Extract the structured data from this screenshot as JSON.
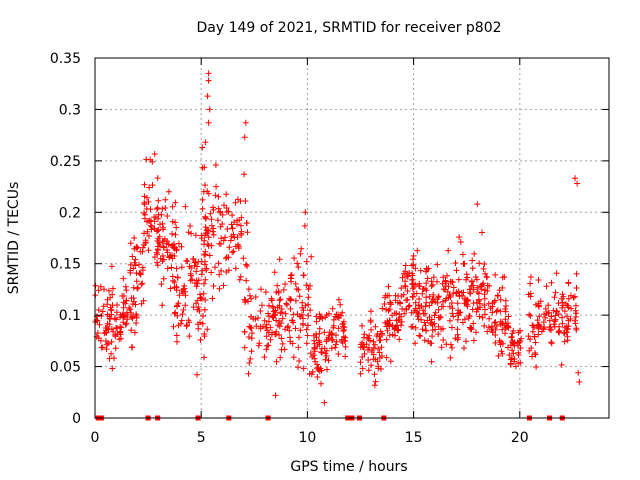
{
  "chart_data": {
    "type": "scatter",
    "title": "Day 149 of 2021, SRMTID for receiver p802",
    "xlabel": "GPS time / hours",
    "ylabel": "SRMTID / TECUs",
    "xlim": [
      0,
      24.2
    ],
    "ylim": [
      0,
      0.35
    ],
    "xticks": [
      0,
      5,
      10,
      15,
      20
    ],
    "yticks": [
      0,
      0.05,
      0.1,
      0.15,
      0.2,
      0.25,
      0.3,
      0.35
    ],
    "ytick_labels": [
      "0",
      "0.05",
      "0.1",
      "0.15",
      "0.2",
      "0.25",
      "0.3",
      "0.35"
    ],
    "grid": true,
    "marker": "+",
    "color": "#ff0000",
    "gap_markers_x": [
      0.15,
      0.3,
      2.5,
      2.95,
      4.85,
      6.3,
      8.15,
      11.9,
      12.1,
      12.45,
      13.6,
      20.45,
      21.4,
      22.0
    ],
    "clusters": [
      {
        "x0": 0.0,
        "x1": 0.55,
        "y": 0.095,
        "spread": 0.03,
        "n": 25
      },
      {
        "x0": 0.5,
        "x1": 1.3,
        "y": 0.09,
        "spread": 0.035,
        "n": 55
      },
      {
        "x0": 1.3,
        "x1": 2.0,
        "y": 0.105,
        "spread": 0.03,
        "n": 40
      },
      {
        "x0": 1.6,
        "x1": 2.3,
        "y": 0.15,
        "spread": 0.03,
        "n": 30
      },
      {
        "x0": 2.3,
        "x1": 3.0,
        "y": 0.19,
        "spread": 0.04,
        "n": 45
      },
      {
        "x0": 2.9,
        "x1": 3.8,
        "y": 0.17,
        "spread": 0.04,
        "n": 55
      },
      {
        "x0": 3.6,
        "x1": 4.6,
        "y": 0.14,
        "spread": 0.045,
        "n": 60
      },
      {
        "x0": 4.6,
        "x1": 5.3,
        "y": 0.13,
        "spread": 0.05,
        "n": 45
      },
      {
        "x0": 5.0,
        "x1": 6.0,
        "y": 0.18,
        "spread": 0.055,
        "n": 60
      },
      {
        "x0": 6.0,
        "x1": 7.2,
        "y": 0.17,
        "spread": 0.045,
        "n": 55
      },
      {
        "x0": 7.0,
        "x1": 8.2,
        "y": 0.09,
        "spread": 0.03,
        "n": 50
      },
      {
        "x0": 8.2,
        "x1": 9.2,
        "y": 0.095,
        "spread": 0.035,
        "n": 60
      },
      {
        "x0": 9.2,
        "x1": 10.2,
        "y": 0.11,
        "spread": 0.045,
        "n": 60
      },
      {
        "x0": 10.2,
        "x1": 11.0,
        "y": 0.07,
        "spread": 0.03,
        "n": 55
      },
      {
        "x0": 11.0,
        "x1": 11.8,
        "y": 0.085,
        "spread": 0.025,
        "n": 45
      },
      {
        "x0": 12.5,
        "x1": 13.5,
        "y": 0.07,
        "spread": 0.025,
        "n": 55
      },
      {
        "x0": 13.5,
        "x1": 14.5,
        "y": 0.095,
        "spread": 0.03,
        "n": 65
      },
      {
        "x0": 14.5,
        "x1": 15.5,
        "y": 0.12,
        "spread": 0.035,
        "n": 70
      },
      {
        "x0": 15.5,
        "x1": 16.5,
        "y": 0.11,
        "spread": 0.035,
        "n": 70
      },
      {
        "x0": 16.5,
        "x1": 17.5,
        "y": 0.11,
        "spread": 0.04,
        "n": 65
      },
      {
        "x0": 17.5,
        "x1": 18.5,
        "y": 0.12,
        "spread": 0.035,
        "n": 70
      },
      {
        "x0": 18.5,
        "x1": 19.5,
        "y": 0.1,
        "spread": 0.03,
        "n": 60
      },
      {
        "x0": 19.5,
        "x1": 20.1,
        "y": 0.07,
        "spread": 0.02,
        "n": 35
      },
      {
        "x0": 20.4,
        "x1": 21.1,
        "y": 0.09,
        "spread": 0.035,
        "n": 40
      },
      {
        "x0": 21.1,
        "x1": 21.9,
        "y": 0.1,
        "spread": 0.03,
        "n": 40
      },
      {
        "x0": 21.9,
        "x1": 22.7,
        "y": 0.1,
        "spread": 0.035,
        "n": 45
      }
    ],
    "highlights": [
      {
        "x": 5.35,
        "y": 0.335
      },
      {
        "x": 5.35,
        "y": 0.328
      },
      {
        "x": 5.3,
        "y": 0.313
      },
      {
        "x": 5.4,
        "y": 0.3
      },
      {
        "x": 5.35,
        "y": 0.287
      },
      {
        "x": 7.1,
        "y": 0.287
      },
      {
        "x": 7.05,
        "y": 0.273
      },
      {
        "x": 5.2,
        "y": 0.268
      },
      {
        "x": 5.05,
        "y": 0.263
      },
      {
        "x": 2.6,
        "y": 0.251
      },
      {
        "x": 2.7,
        "y": 0.249
      },
      {
        "x": 22.6,
        "y": 0.233
      },
      {
        "x": 22.7,
        "y": 0.228
      },
      {
        "x": 10.8,
        "y": 0.015
      },
      {
        "x": 8.5,
        "y": 0.022
      },
      {
        "x": 22.8,
        "y": 0.035
      },
      {
        "x": 22.75,
        "y": 0.044
      },
      {
        "x": 4.8,
        "y": 0.042
      },
      {
        "x": 18.0,
        "y": 0.208
      },
      {
        "x": 9.9,
        "y": 0.2
      }
    ]
  }
}
